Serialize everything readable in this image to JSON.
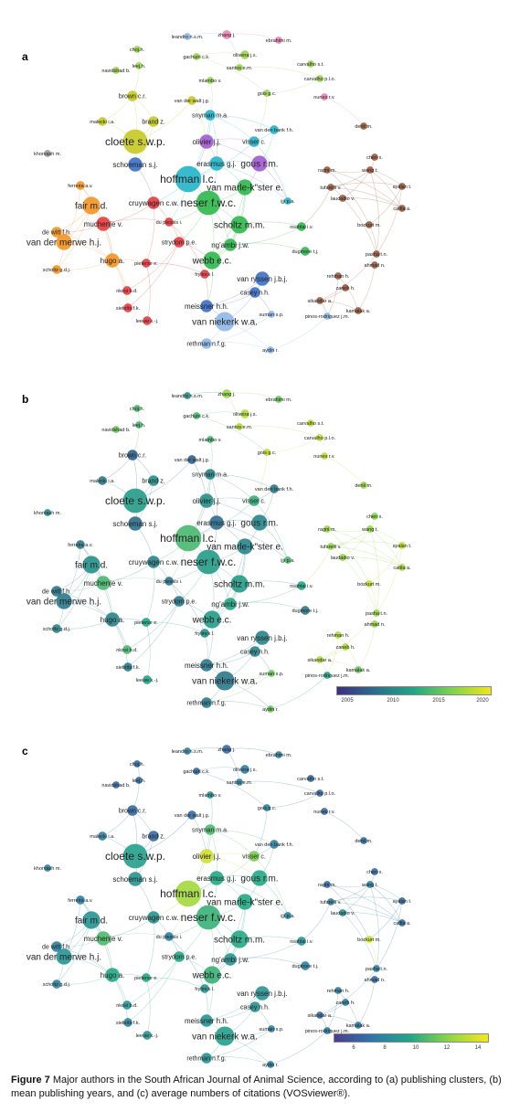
{
  "caption": {
    "label": "Figure 7",
    "text": " Major authors in the South African Journal of Animal Science, according to (a) publishing clusters, (b) mean publishing years, and (c) average numbers of citations (VOSviewer®)."
  },
  "panels": [
    {
      "id": "a",
      "label": "a",
      "mode": "cluster"
    },
    {
      "id": "b",
      "label": "b",
      "mode": "year"
    },
    {
      "id": "c",
      "label": "c",
      "mode": "citations"
    }
  ],
  "colorbars": {
    "b": {
      "ticks": [
        "2005",
        "2010",
        "2015",
        "2020"
      ],
      "colors": [
        "#3b2f7f",
        "#2c6e8e",
        "#21a685",
        "#7fd34e",
        "#f2e51d"
      ]
    },
    "c": {
      "ticks": [
        "6",
        "8",
        "10",
        "12",
        "14"
      ],
      "colors": [
        "#4a3d8f",
        "#2f77a8",
        "#22a884",
        "#8ed645",
        "#f7e620"
      ]
    }
  },
  "cluster_colors": {
    "red": "#e8383d",
    "green": "#2db84b",
    "blue": "#3b6fc9",
    "yellow": "#c7c922",
    "purple": "#a05ad0",
    "cyan": "#22b5c8",
    "orange": "#f39322",
    "brown": "#9c5a3c",
    "pink": "#f07fb5",
    "lightgreen": "#9ad650",
    "lightblue": "#8fb8e8",
    "grey": "#9a9a9a"
  },
  "nodes": [
    {
      "name": "leandro n.s.m.",
      "cluster": "lightblue",
      "size": 2,
      "year": 0.4,
      "cit": 0.3
    },
    {
      "name": "zhang j.",
      "cluster": "pink",
      "size": 3,
      "year": 0.8,
      "cit": 0.2
    },
    {
      "name": "ebrahimi m.",
      "cluster": "pink",
      "size": 2,
      "year": 0.7,
      "cit": 0.3
    },
    {
      "name": "choj.h.",
      "cluster": "lightgreen",
      "size": 2,
      "year": 0.6,
      "cit": 0.2
    },
    {
      "name": "gachuiri c.k.",
      "cluster": "lightgreen",
      "size": 2,
      "year": 0.6,
      "cit": 0.2
    },
    {
      "name": "oliveira j.s.",
      "cluster": "lightgreen",
      "size": 3,
      "year": 0.85,
      "cit": 0.3
    },
    {
      "name": "leej.h.",
      "cluster": "lightgreen",
      "size": 2,
      "year": 0.6,
      "cit": 0.2
    },
    {
      "name": "santos e.m.",
      "cluster": "lightgreen",
      "size": 2,
      "year": 0.85,
      "cit": 0.3
    },
    {
      "name": "carvalho s.t.",
      "cluster": "lightgreen",
      "size": 2,
      "year": 0.9,
      "cit": 0.2
    },
    {
      "name": "navidshad b.",
      "cluster": "lightgreen",
      "size": 2,
      "year": 0.7,
      "cit": 0.2
    },
    {
      "name": "mlambo v.",
      "cluster": "lightgreen",
      "size": 2,
      "year": 0.6,
      "cit": 0.4
    },
    {
      "name": "carvalho p.l.o.",
      "cluster": "lightgreen",
      "size": 2,
      "year": 0.9,
      "cit": 0.2
    },
    {
      "name": "gois g.c.",
      "cluster": "lightgreen",
      "size": 2,
      "year": 0.9,
      "cit": 0.3
    },
    {
      "name": "nunes r.v.",
      "cluster": "pink",
      "size": 2,
      "year": 0.9,
      "cit": 0.2
    },
    {
      "name": "brown c.r.",
      "cluster": "yellow",
      "size": 4,
      "year": 0.2,
      "cit": 0.2
    },
    {
      "name": "van der walt j.g.",
      "cluster": "yellow",
      "size": 3,
      "year": 0.2,
      "cit": 0.2
    },
    {
      "name": "snyman m.a.",
      "cluster": "cyan",
      "size": 4,
      "year": 0.35,
      "cit": 0.6
    },
    {
      "name": "brand z.",
      "cluster": "yellow",
      "size": 4,
      "year": 0.4,
      "cit": 0.2
    },
    {
      "name": "malecki i.a.",
      "cluster": "yellow",
      "size": 3,
      "year": 0.3,
      "cit": 0.3
    },
    {
      "name": "van den bank f.h.",
      "cluster": "cyan",
      "size": 3,
      "year": 0.3,
      "cit": 0.3
    },
    {
      "name": "denli m.",
      "cluster": "brown",
      "size": 2,
      "year": 0.8,
      "cit": 0.2
    },
    {
      "name": "cloete s.w.p.",
      "cluster": "yellow",
      "size": 12,
      "year": 0.45,
      "cit": 0.45
    },
    {
      "name": "olivier j.j.",
      "cluster": "purple",
      "size": 6,
      "year": 0.4,
      "cit": 0.9
    },
    {
      "name": "visser c.",
      "cluster": "cyan",
      "size": 4,
      "year": 0.55,
      "cit": 0.7
    },
    {
      "name": "khorvash m.",
      "cluster": "grey",
      "size": 2,
      "year": 0.4,
      "cit": 0.3
    },
    {
      "name": "schoeman s.j.",
      "cluster": "blue",
      "size": 6,
      "year": 0.25,
      "cit": 0.4
    },
    {
      "name": "erasmus g.j.",
      "cluster": "cyan",
      "size": 6,
      "year": 0.25,
      "cit": 0.5
    },
    {
      "name": "gous r.m.",
      "cluster": "purple",
      "size": 7,
      "year": 0.35,
      "cit": 0.5
    },
    {
      "name": "chen x.",
      "cluster": "brown",
      "size": 2,
      "year": 0.75,
      "cit": 0.2
    },
    {
      "name": "wang t.",
      "cluster": "brown",
      "size": 2,
      "year": 0.8,
      "cit": 0.3
    },
    {
      "name": "ragni m.",
      "cluster": "brown",
      "size": 2,
      "year": 0.8,
      "cit": 0.2
    },
    {
      "name": "hoffman l.c.",
      "cluster": "cyan",
      "size": 13,
      "year": 0.6,
      "cit": 0.8
    },
    {
      "name": "ferreira a.v.",
      "cluster": "orange",
      "size": 3,
      "year": 0.3,
      "cit": 0.3
    },
    {
      "name": "van marle-k\"ster e.",
      "cluster": "green",
      "size": 7,
      "year": 0.35,
      "cit": 0.5
    },
    {
      "name": "tufarelli v.",
      "cluster": "brown",
      "size": 2,
      "year": 0.8,
      "cit": 0.3
    },
    {
      "name": "ayalan t.",
      "cluster": "brown",
      "size": 2,
      "year": 0.9,
      "cit": 0.2
    },
    {
      "name": "laudadio v.",
      "cluster": "brown",
      "size": 2,
      "year": 0.8,
      "cit": 0.4
    },
    {
      "name": "cattla a.",
      "cluster": "brown",
      "size": 2,
      "year": 0.85,
      "cit": 0.2
    },
    {
      "name": "fair m.d.",
      "cluster": "orange",
      "size": 8,
      "year": 0.4,
      "cit": 0.4
    },
    {
      "name": "cruywagen c.w.",
      "cluster": "red",
      "size": 5,
      "year": 0.35,
      "cit": 0.4
    },
    {
      "name": "neser f.w.c.",
      "cluster": "green",
      "size": 12,
      "year": 0.45,
      "cit": 0.55
    },
    {
      "name": "ijji p.a.",
      "cluster": "cyan",
      "size": 2,
      "year": 0.6,
      "cit": 0.3
    },
    {
      "name": "muchenje v.",
      "cluster": "red",
      "size": 6,
      "year": 0.6,
      "cit": 0.6
    },
    {
      "name": "du plessis i.",
      "cluster": "red",
      "size": 3,
      "year": 0.3,
      "cit": 0.3
    },
    {
      "name": "scholtz m.m.",
      "cluster": "green",
      "size": 8,
      "year": 0.45,
      "cit": 0.5
    },
    {
      "name": "nsahlai i.v.",
      "cluster": "green",
      "size": 3,
      "year": 0.5,
      "cit": 0.4
    },
    {
      "name": "bozkurt m.",
      "cluster": "brown",
      "size": 2,
      "year": 0.9,
      "cit": 0.9
    },
    {
      "name": "de witt f.h.",
      "cluster": "orange",
      "size": 4,
      "year": 0.3,
      "cit": 0.3
    },
    {
      "name": "van der merwe h.j.",
      "cluster": "orange",
      "size": 7,
      "year": 0.3,
      "cit": 0.4
    },
    {
      "name": "strydom p.e.",
      "cluster": "red",
      "size": 4,
      "year": 0.3,
      "cit": 0.5
    },
    {
      "name": "ng'ambi j.w.",
      "cluster": "green",
      "size": 5,
      "year": 0.5,
      "cit": 0.4
    },
    {
      "name": "dugmore t.j.",
      "cluster": "green",
      "size": 3,
      "year": 0.3,
      "cit": 0.3
    },
    {
      "name": "pasha t.n.",
      "cluster": "brown",
      "size": 2,
      "year": 0.8,
      "cit": 0.3
    },
    {
      "name": "ahmad n.",
      "cluster": "brown",
      "size": 2,
      "year": 0.8,
      "cit": 0.2
    },
    {
      "name": "hugo a.",
      "cluster": "orange",
      "size": 6,
      "year": 0.35,
      "cit": 0.5
    },
    {
      "name": "pieterse e.",
      "cluster": "red",
      "size": 3,
      "year": 0.5,
      "cit": 0.5
    },
    {
      "name": "webb e.c.",
      "cluster": "green",
      "size": 8,
      "year": 0.45,
      "cit": 0.55
    },
    {
      "name": "scholtz g.d.j.",
      "cluster": "orange",
      "size": 3,
      "year": 0.35,
      "cit": 0.3
    },
    {
      "name": "frylinck l.",
      "cluster": "red",
      "size": 3,
      "year": 0.4,
      "cit": 0.4
    },
    {
      "name": "van ryssen j.b.j.",
      "cluster": "blue",
      "size": 6,
      "year": 0.35,
      "cit": 0.4
    },
    {
      "name": "rehman h.",
      "cluster": "brown",
      "size": 2,
      "year": 0.85,
      "cit": 0.3
    },
    {
      "name": "nkosi b.d.",
      "cluster": "red",
      "size": 3,
      "year": 0.6,
      "cit": 0.4
    },
    {
      "name": "zaneb h.",
      "cluster": "brown",
      "size": 2,
      "year": 0.85,
      "cit": 0.3
    },
    {
      "name": "casey n.h.",
      "cluster": "blue",
      "size": 4,
      "year": 0.35,
      "cit": 0.4
    },
    {
      "name": "sikandar a.",
      "cluster": "brown",
      "size": 2,
      "year": 0.85,
      "cit": 0.2
    },
    {
      "name": "meissner h.h.",
      "cluster": "blue",
      "size": 5,
      "year": 0.3,
      "cit": 0.4
    },
    {
      "name": "siebrits f.k.",
      "cluster": "red",
      "size": 3,
      "year": 0.3,
      "cit": 0.3
    },
    {
      "name": "kamalak a.",
      "cluster": "brown",
      "size": 2,
      "year": 0.7,
      "cit": 0.3
    },
    {
      "name": "suman s.p.",
      "cluster": "lightblue",
      "size": 2,
      "year": 0.7,
      "cit": 0.3
    },
    {
      "name": "pinos-rodriguez j.m.",
      "cluster": "lightblue",
      "size": 2,
      "year": 0.5,
      "cit": 0.3
    },
    {
      "name": "leeuw k.-j.",
      "cluster": "red",
      "size": 3,
      "year": 0.5,
      "cit": 0.4
    },
    {
      "name": "van niekerk w.a.",
      "cluster": "lightblue",
      "size": 9,
      "year": 0.3,
      "cit": 0.45
    },
    {
      "name": "rethman n.f.g.",
      "cluster": "lightblue",
      "size": 4,
      "year": 0.3,
      "cit": 0.4
    },
    {
      "name": "aydin r.",
      "cluster": "lightblue",
      "size": 2,
      "year": 0.7,
      "cit": 0.3
    }
  ]
}
